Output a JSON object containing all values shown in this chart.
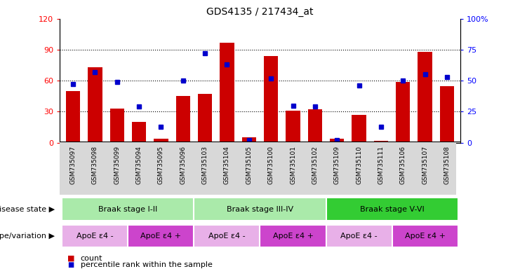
{
  "title": "GDS4135 / 217434_at",
  "samples": [
    "GSM735097",
    "GSM735098",
    "GSM735099",
    "GSM735094",
    "GSM735095",
    "GSM735096",
    "GSM735103",
    "GSM735104",
    "GSM735105",
    "GSM735100",
    "GSM735101",
    "GSM735102",
    "GSM735109",
    "GSM735110",
    "GSM735111",
    "GSM735106",
    "GSM735107",
    "GSM735108"
  ],
  "counts": [
    50,
    73,
    33,
    20,
    4,
    45,
    47,
    97,
    5,
    84,
    31,
    32,
    4,
    27,
    2,
    59,
    88,
    55
  ],
  "percentiles": [
    47,
    57,
    49,
    29,
    13,
    50,
    72,
    63,
    2,
    52,
    30,
    29,
    2,
    46,
    13,
    50,
    55,
    53
  ],
  "disease_state_groups": [
    {
      "label": "Braak stage I-II",
      "start": 0,
      "end": 6,
      "color": "#aaeaaa"
    },
    {
      "label": "Braak stage III-IV",
      "start": 6,
      "end": 12,
      "color": "#aaeaaa"
    },
    {
      "label": "Braak stage V-VI",
      "start": 12,
      "end": 18,
      "color": "#33cc33"
    }
  ],
  "genotype_groups": [
    {
      "label": "ApoE ε4 -",
      "start": 0,
      "end": 3,
      "color": "#e8b0e8"
    },
    {
      "label": "ApoE ε4 +",
      "start": 3,
      "end": 6,
      "color": "#cc44cc"
    },
    {
      "label": "ApoE ε4 -",
      "start": 6,
      "end": 9,
      "color": "#e8b0e8"
    },
    {
      "label": "ApoE ε4 +",
      "start": 9,
      "end": 12,
      "color": "#cc44cc"
    },
    {
      "label": "ApoE ε4 -",
      "start": 12,
      "end": 15,
      "color": "#e8b0e8"
    },
    {
      "label": "ApoE ε4 +",
      "start": 15,
      "end": 18,
      "color": "#cc44cc"
    }
  ],
  "bar_color": "#cc0000",
  "dot_color": "#0000cc",
  "left_ylim": [
    0,
    120
  ],
  "right_ylim": [
    0,
    100
  ],
  "left_yticks": [
    0,
    30,
    60,
    90,
    120
  ],
  "right_yticks": [
    0,
    25,
    50,
    75,
    100
  ],
  "right_yticklabels": [
    "0",
    "25",
    "50",
    "75",
    "100%"
  ],
  "grid_values": [
    30,
    60,
    90
  ],
  "legend_count_label": "count",
  "legend_pct_label": "percentile rank within the sample",
  "disease_label": "disease state",
  "genotype_label": "genotype/variation"
}
